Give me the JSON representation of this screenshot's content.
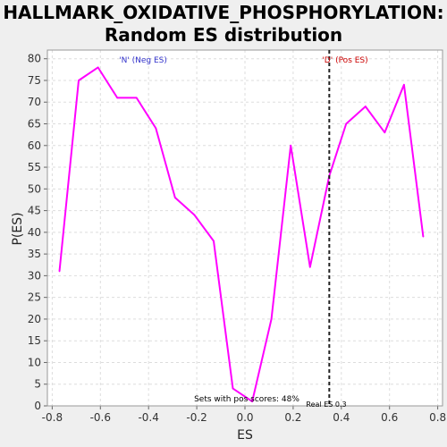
{
  "chart_data": {
    "type": "line",
    "title": [
      "HALLMARK_OXIDATIVE_PHOSPHORYLATION:",
      "Random ES distribution"
    ],
    "xlabel": "ES",
    "ylabel": "P(ES)",
    "xlim": [
      -0.82,
      0.82
    ],
    "ylim": [
      0,
      82
    ],
    "xticks": [
      -0.8,
      -0.6,
      -0.4,
      -0.2,
      0.0,
      0.2,
      0.4,
      0.6,
      0.8
    ],
    "xtick_labels": [
      "-0.8",
      "-0.6",
      "-0.4",
      "-0.2",
      "0.0",
      "0.2",
      "0.4",
      "0.6",
      "0.8"
    ],
    "yticks": [
      0,
      5,
      10,
      15,
      20,
      25,
      30,
      35,
      40,
      45,
      50,
      55,
      60,
      65,
      70,
      75,
      80
    ],
    "grid": true,
    "series": [
      {
        "color": "#ff00ff",
        "x": [
          -0.77,
          -0.69,
          -0.61,
          -0.53,
          -0.45,
          -0.37,
          -0.29,
          -0.21,
          -0.13,
          -0.05,
          0.03,
          0.11,
          0.19,
          0.27,
          0.35,
          0.42,
          0.5,
          0.58,
          0.66,
          0.74
        ],
        "y": [
          31,
          75,
          78,
          71,
          71,
          64,
          48,
          44,
          38,
          4,
          1,
          20,
          60,
          32,
          53,
          65,
          69,
          63,
          74,
          39
        ]
      }
    ],
    "vline": {
      "x": 0.35,
      "label": "Real ES 0.3"
    },
    "annotations": {
      "neg": "'N' (Neg ES)",
      "pos": "'D' (Pos ES)",
      "sets": "Sets with pos scores: 48%"
    }
  },
  "colors": {
    "line": "#ff00ff",
    "neg_label": "#3333cc",
    "pos_label": "#cc0000",
    "grid": "#dddddd"
  }
}
